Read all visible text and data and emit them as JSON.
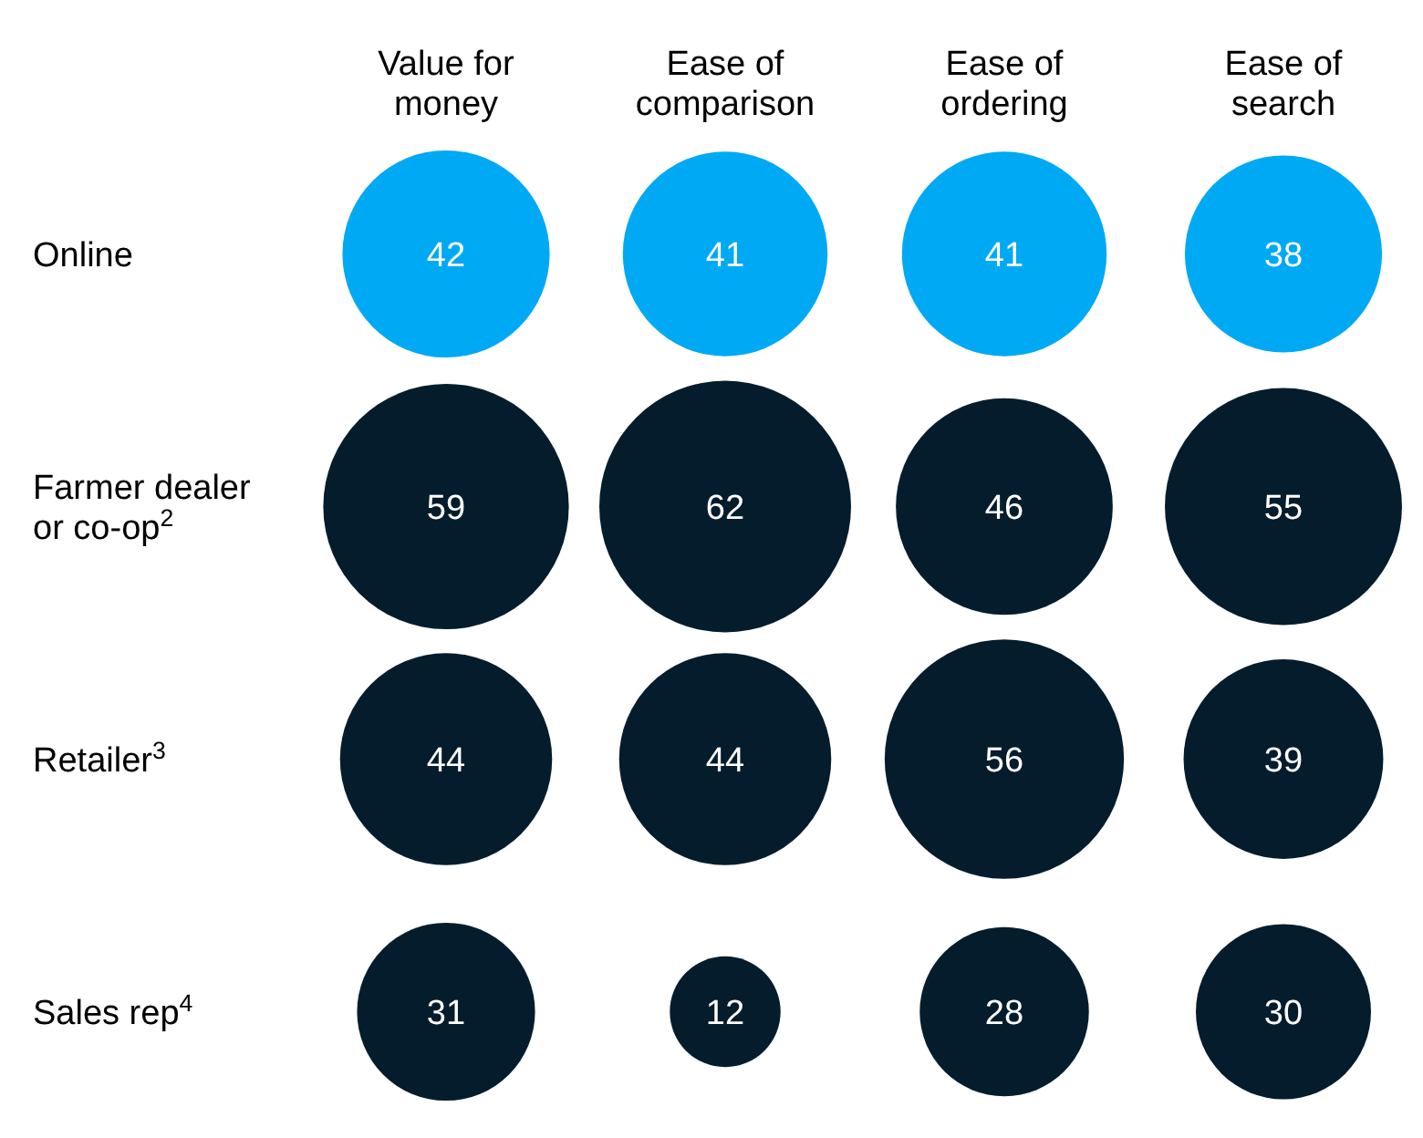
{
  "chart_data": {
    "type": "other",
    "categories": [
      "Value for money",
      "Ease of comparison",
      "Ease of ordering",
      "Ease of search"
    ],
    "y_categories": [
      "Online",
      "Farmer dealer or co-op$^{2}$",
      "Retailer$^{3}$",
      "Sales rep$^{4}$"
    ],
    "series": [
      {
        "color": "#00a9f4",
        "values": [
          42,
          41,
          41,
          38
        ]
      },
      {
        "color": "#051c2c",
        "values": [
          59,
          62,
          46,
          55
        ]
      },
      {
        "color": "#051c2c",
        "values": [
          44,
          44,
          56,
          39
        ]
      },
      {
        "color": "#051c2c",
        "values": [
          31,
          12,
          28,
          30
        ]
      }
    ],
    "data_labels": true
  }
}
